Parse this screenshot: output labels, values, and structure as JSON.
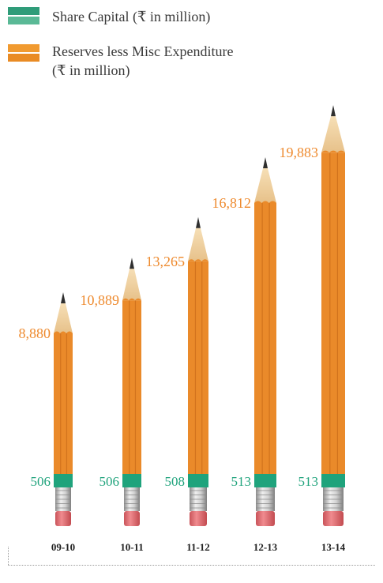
{
  "legend": {
    "share_label": "Share Capital (₹ in million)",
    "reserves_label_line1": "Reserves less Misc Expenditure",
    "reserves_label_line2": "(₹ in million)"
  },
  "colors": {
    "reserves": "#ea8a2a",
    "share": "#1fa37c",
    "reserves_text": "#ee8a2e",
    "share_text": "#1fa37c"
  },
  "chart_data": {
    "type": "bar",
    "categories": [
      "09-10",
      "10-11",
      "11-12",
      "12-13",
      "13-14"
    ],
    "series": [
      {
        "name": "Share Capital (₹ in million)",
        "values": [
          506,
          506,
          508,
          513,
          513
        ],
        "labels": [
          "506",
          "506",
          "508",
          "513",
          "513"
        ]
      },
      {
        "name": "Reserves less Misc Expenditure (₹ in million)",
        "values": [
          8880,
          10889,
          13265,
          16812,
          19883
        ],
        "labels": [
          "8,880",
          "10,889",
          "13,265",
          "16,812",
          "19,883"
        ]
      }
    ]
  }
}
